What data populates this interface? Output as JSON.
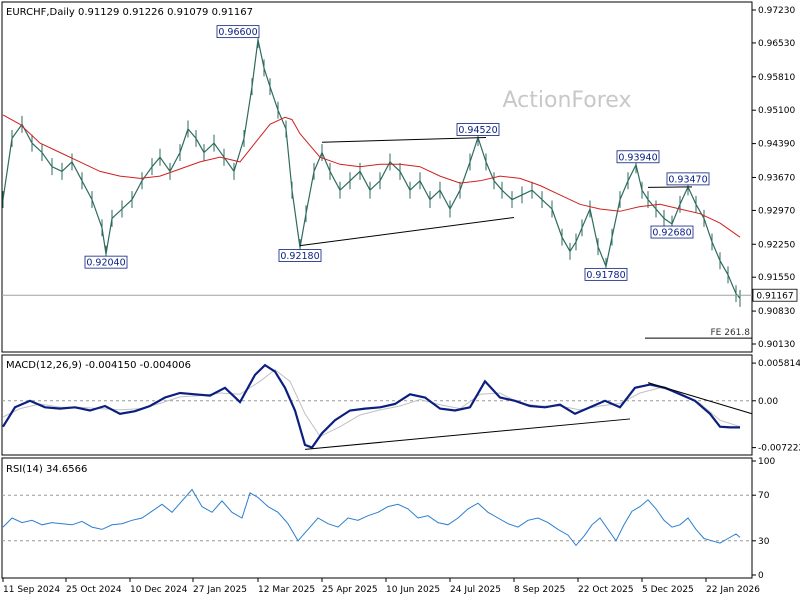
{
  "chart_data": [
    {
      "type": "line",
      "panel": "price",
      "title": "EURCHF,Daily  0.91129 0.91226 0.91079 0.91167",
      "watermark": "ActionForex",
      "ylim": [
        0.9013,
        0.9723
      ],
      "yticks": [
        0.9723,
        0.9653,
        0.9581,
        0.951,
        0.9439,
        0.9367,
        0.9297,
        0.9225,
        0.9155,
        0.9083,
        0.9013
      ],
      "current_price_label": "0.91167",
      "current_price": 0.91167,
      "fe_label": "FE 261.8",
      "fe_level": 0.9034,
      "annotations": [
        {
          "text": "0.96600",
          "x": 238,
          "value": 0.966
        },
        {
          "text": "0.92040",
          "x": 106,
          "value": 0.9204
        },
        {
          "text": "0.92180",
          "x": 300,
          "value": 0.9218
        },
        {
          "text": "0.94520",
          "x": 478,
          "value": 0.9452
        },
        {
          "text": "0.93940",
          "x": 638,
          "value": 0.9394
        },
        {
          "text": "0.93470",
          "x": 688,
          "value": 0.9347
        },
        {
          "text": "0.92680",
          "x": 672,
          "value": 0.9268
        },
        {
          "text": "0.91780",
          "x": 606,
          "value": 0.9178
        }
      ],
      "series": [
        {
          "color": "#2e6b5e",
          "x": [
            3,
            12,
            22,
            32,
            42,
            52,
            62,
            72,
            82,
            92,
            102,
            106,
            112,
            122,
            132,
            142,
            152,
            160,
            170,
            180,
            188,
            196,
            204,
            214,
            224,
            234,
            244,
            252,
            258,
            264,
            270,
            278,
            286,
            292,
            300,
            306,
            314,
            322,
            330,
            340,
            350,
            360,
            370,
            380,
            390,
            400,
            410,
            420,
            430,
            440,
            450,
            460,
            470,
            478,
            486,
            494,
            502,
            512,
            522,
            532,
            542,
            552,
            562,
            570,
            576,
            582,
            590,
            598,
            606,
            612,
            620,
            628,
            636,
            642,
            648,
            656,
            664,
            672,
            680,
            688,
            696,
            704,
            712,
            720,
            728,
            736,
            740
          ],
          "values": [
            0.932,
            0.945,
            0.948,
            0.944,
            0.942,
            0.939,
            0.938,
            0.94,
            0.936,
            0.932,
            0.926,
            0.9204,
            0.928,
            0.93,
            0.932,
            0.936,
            0.939,
            0.941,
            0.938,
            0.942,
            0.947,
            0.945,
            0.942,
            0.944,
            0.941,
            0.938,
            0.945,
            0.956,
            0.966,
            0.96,
            0.956,
            0.951,
            0.947,
            0.934,
            0.9218,
            0.929,
            0.938,
            0.942,
            0.938,
            0.934,
            0.936,
            0.938,
            0.934,
            0.936,
            0.94,
            0.938,
            0.934,
            0.936,
            0.932,
            0.934,
            0.93,
            0.934,
            0.94,
            0.9452,
            0.94,
            0.936,
            0.934,
            0.932,
            0.933,
            0.934,
            0.932,
            0.93,
            0.924,
            0.921,
            0.923,
            0.926,
            0.93,
            0.922,
            0.9178,
            0.924,
            0.932,
            0.936,
            0.9394,
            0.934,
            0.932,
            0.93,
            0.928,
            0.9268,
            0.931,
            0.9347,
            0.931,
            0.928,
            0.923,
            0.919,
            0.916,
            0.912,
            0.911
          ]
        },
        {
          "color": "#d02020",
          "x": [
            3,
            20,
            40,
            60,
            80,
            100,
            120,
            140,
            160,
            180,
            200,
            220,
            240,
            255,
            270,
            285,
            292,
            300,
            320,
            340,
            360,
            380,
            400,
            420,
            440,
            460,
            480,
            500,
            520,
            540,
            560,
            580,
            600,
            620,
            640,
            660,
            680,
            700,
            720,
            740
          ],
          "values": [
            0.95,
            0.948,
            0.944,
            0.942,
            0.94,
            0.938,
            0.937,
            0.9365,
            0.937,
            0.9385,
            0.94,
            0.941,
            0.94,
            0.944,
            0.948,
            0.9495,
            0.949,
            0.946,
            0.941,
            0.9395,
            0.939,
            0.9395,
            0.9395,
            0.939,
            0.937,
            0.9355,
            0.936,
            0.937,
            0.9365,
            0.935,
            0.933,
            0.931,
            0.93,
            0.9295,
            0.9305,
            0.931,
            0.93,
            0.929,
            0.927,
            0.924
          ]
        }
      ],
      "trendlines": [
        {
          "color": "#000000",
          "x1": 300,
          "y1": 0.9222,
          "x2": 514,
          "y2": 0.9282
        },
        {
          "color": "#000000",
          "x1": 322,
          "y1": 0.9442,
          "x2": 486,
          "y2": 0.9452
        },
        {
          "color": "#000000",
          "x1": 648,
          "y1": 0.9346,
          "x2": 692,
          "y2": 0.9347
        }
      ]
    },
    {
      "type": "line",
      "panel": "macd",
      "title": "MACD(12,26,9) -0.004150 -0.004006",
      "ylim": [
        -0.0079,
        0.0066
      ],
      "yticks_labels": [
        "0.005814",
        "0.00",
        "-0.007222"
      ],
      "yticks": [
        0.005814,
        0.0,
        -0.007222
      ],
      "series": [
        {
          "color": "#0a1f80",
          "x": [
            3,
            15,
            30,
            45,
            60,
            75,
            90,
            105,
            120,
            135,
            150,
            165,
            180,
            195,
            210,
            225,
            240,
            255,
            265,
            275,
            285,
            295,
            305,
            312,
            322,
            335,
            350,
            365,
            380,
            395,
            410,
            425,
            440,
            455,
            470,
            485,
            500,
            515,
            530,
            545,
            560,
            575,
            590,
            605,
            620,
            635,
            650,
            665,
            680,
            695,
            710,
            720,
            730,
            740
          ],
          "values": [
            -0.004,
            -0.001,
            0.0,
            -0.001,
            -0.0012,
            -0.001,
            -0.0015,
            -0.0008,
            -0.002,
            -0.0016,
            -0.0008,
            0.0005,
            0.0012,
            0.001,
            0.0008,
            0.002,
            -0.0002,
            0.004,
            0.0055,
            0.0045,
            0.002,
            -0.0015,
            -0.0068,
            -0.0072,
            -0.005,
            -0.003,
            -0.0015,
            -0.0012,
            -0.001,
            -0.0005,
            0.001,
            0.0005,
            -0.0012,
            -0.0015,
            -0.001,
            0.003,
            0.0005,
            0.0,
            -0.0008,
            -0.001,
            -0.0006,
            -0.002,
            -0.001,
            0.0,
            -0.001,
            0.002,
            0.0025,
            0.002,
            0.001,
            0.0,
            -0.002,
            -0.004,
            -0.0041,
            -0.0041
          ]
        },
        {
          "color": "#c0c0c0",
          "x": [
            3,
            20,
            40,
            60,
            80,
            100,
            120,
            140,
            160,
            180,
            200,
            220,
            240,
            260,
            275,
            290,
            305,
            320,
            340,
            360,
            380,
            400,
            420,
            440,
            460,
            480,
            500,
            520,
            540,
            560,
            580,
            600,
            620,
            640,
            660,
            680,
            700,
            720,
            740
          ],
          "values": [
            -0.0025,
            -0.0012,
            -0.0005,
            -0.001,
            -0.001,
            -0.0012,
            -0.0014,
            -0.0012,
            -0.0004,
            0.0006,
            0.0008,
            0.0012,
            0.001,
            0.003,
            0.0048,
            0.003,
            -0.002,
            -0.0055,
            -0.004,
            -0.0022,
            -0.0014,
            -0.0008,
            0.0002,
            -0.0006,
            -0.0012,
            0.001,
            0.0012,
            -0.0004,
            -0.0008,
            -0.0008,
            -0.0014,
            -0.0008,
            -0.0004,
            0.0012,
            0.002,
            0.0012,
            -0.0004,
            -0.003,
            -0.004
          ]
        }
      ],
      "trendlines": [
        {
          "color": "#000000",
          "x1": 305,
          "y1": -0.0075,
          "x2": 630,
          "y2": -0.0028
        },
        {
          "color": "#000000",
          "x1": 648,
          "y1": 0.0028,
          "x2": 752,
          "y2": -0.002
        }
      ]
    },
    {
      "type": "line",
      "panel": "rsi",
      "title": "RSI(14) 34.6566",
      "ylim": [
        0,
        100
      ],
      "yticks": [
        100,
        70,
        30,
        0
      ],
      "series": [
        {
          "color": "#2a7fd0",
          "x": [
            3,
            12,
            22,
            32,
            42,
            52,
            62,
            72,
            82,
            92,
            102,
            112,
            122,
            132,
            142,
            152,
            162,
            172,
            182,
            192,
            202,
            212,
            222,
            232,
            242,
            250,
            258,
            268,
            278,
            288,
            298,
            308,
            318,
            328,
            338,
            348,
            358,
            368,
            378,
            388,
            398,
            408,
            418,
            428,
            438,
            448,
            458,
            468,
            478,
            488,
            498,
            508,
            518,
            528,
            538,
            548,
            558,
            568,
            576,
            584,
            592,
            600,
            608,
            616,
            624,
            632,
            640,
            648,
            656,
            664,
            672,
            680,
            688,
            696,
            704,
            712,
            720,
            728,
            736,
            740
          ],
          "values": [
            42,
            50,
            46,
            48,
            44,
            46,
            45,
            44,
            47,
            42,
            40,
            44,
            45,
            48,
            50,
            56,
            62,
            55,
            65,
            75,
            60,
            55,
            65,
            55,
            50,
            72,
            68,
            60,
            55,
            45,
            30,
            40,
            50,
            45,
            42,
            50,
            48,
            52,
            55,
            60,
            62,
            58,
            50,
            52,
            46,
            44,
            50,
            58,
            63,
            55,
            50,
            45,
            42,
            48,
            50,
            46,
            40,
            35,
            26,
            34,
            44,
            50,
            40,
            30,
            44,
            56,
            60,
            66,
            58,
            48,
            42,
            44,
            50,
            40,
            32,
            30,
            28,
            32,
            36,
            33
          ]
        }
      ]
    }
  ],
  "x_axis": {
    "labels": [
      "11 Sep 2024",
      "25 Oct 2024",
      "10 Dec 2024",
      "27 Jan 2025",
      "12 Mar 2025",
      "25 Apr 2025",
      "10 Jun 2025",
      "24 Jul 2025",
      "8 Sep 2025",
      "22 Oct 2025",
      "5 Dec 2025",
      "22 Jan 2026"
    ],
    "positions": [
      3,
      66,
      130,
      193,
      258,
      322,
      386,
      450,
      514,
      578,
      642,
      706
    ]
  }
}
